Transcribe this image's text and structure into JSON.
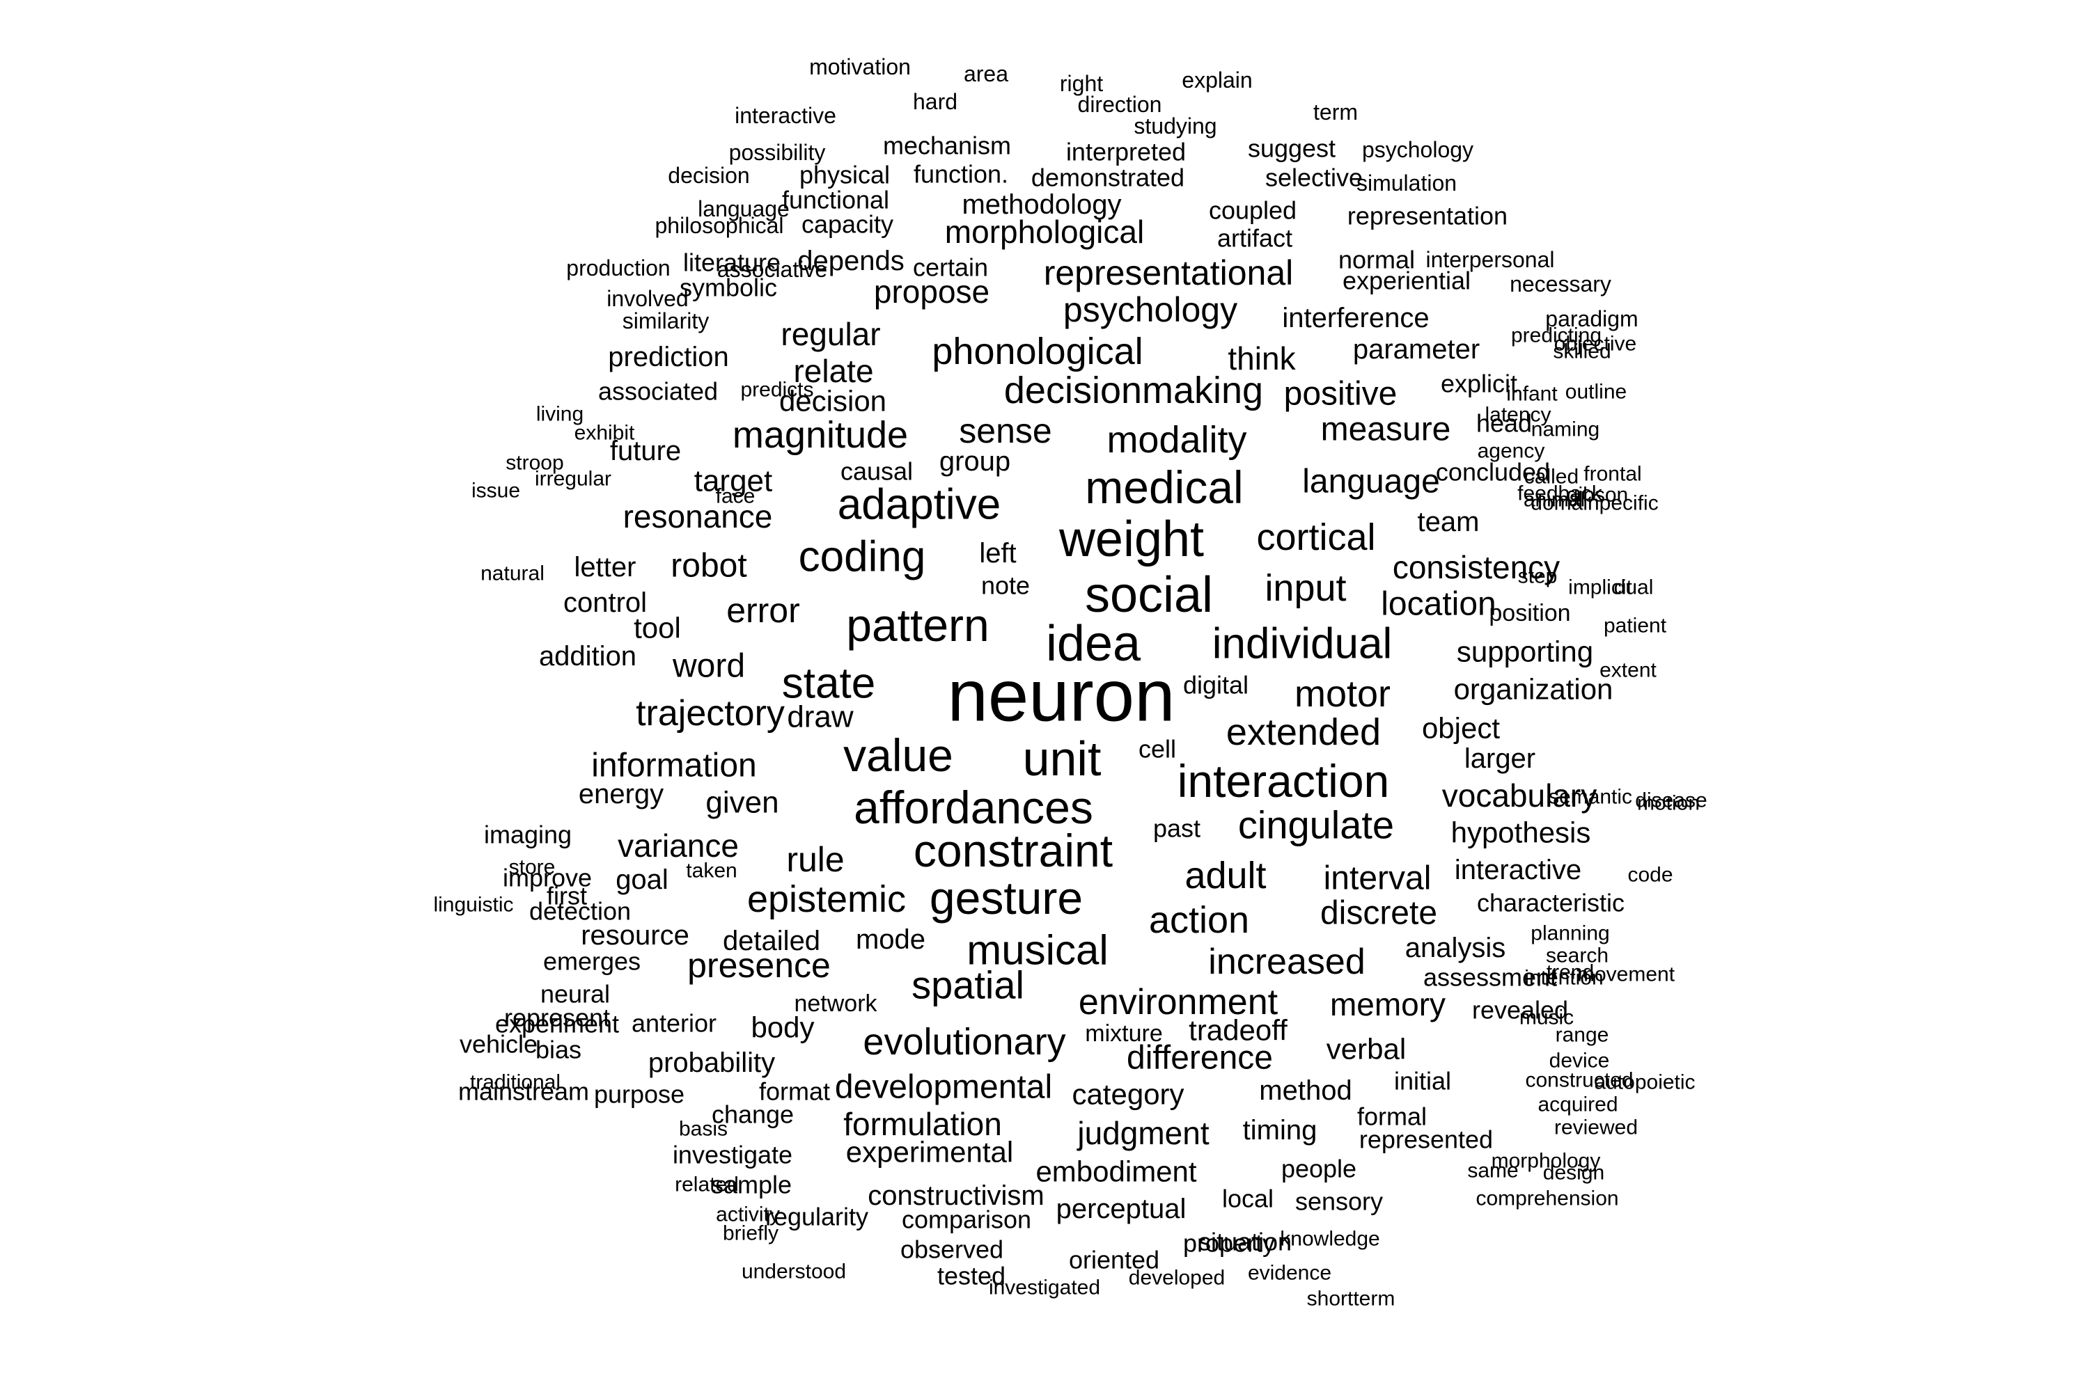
{
  "words": [
    {
      "text": "neuron",
      "weight": 100
    },
    {
      "text": "idea",
      "weight": 74
    },
    {
      "text": "social",
      "weight": 74
    },
    {
      "text": "weight",
      "weight": 72
    },
    {
      "text": "unit",
      "weight": 70
    },
    {
      "text": "medical",
      "weight": 68
    },
    {
      "text": "affordances",
      "weight": 68
    },
    {
      "text": "value",
      "weight": 68
    },
    {
      "text": "pattern",
      "weight": 67
    },
    {
      "text": "gesture",
      "weight": 66
    },
    {
      "text": "constraint",
      "weight": 66
    },
    {
      "text": "interaction",
      "weight": 65
    },
    {
      "text": "coding",
      "weight": 64
    },
    {
      "text": "adaptive",
      "weight": 63
    },
    {
      "text": "state",
      "weight": 61
    },
    {
      "text": "individual",
      "weight": 60
    },
    {
      "text": "musical",
      "weight": 58
    },
    {
      "text": "cingulate",
      "weight": 57
    },
    {
      "text": "spatial",
      "weight": 56
    },
    {
      "text": "evolutionary",
      "weight": 55
    },
    {
      "text": "epistemic",
      "weight": 54
    },
    {
      "text": "input",
      "weight": 54
    },
    {
      "text": "adult",
      "weight": 54
    },
    {
      "text": "extended",
      "weight": 54
    },
    {
      "text": "cortical",
      "weight": 54
    },
    {
      "text": "modality",
      "weight": 54
    },
    {
      "text": "phonological",
      "weight": 54
    },
    {
      "text": "decisionmaking",
      "weight": 54
    },
    {
      "text": "magnitude",
      "weight": 54
    },
    {
      "text": "trajectory",
      "weight": 53
    },
    {
      "text": "action",
      "weight": 53
    },
    {
      "text": "environment",
      "weight": 52
    },
    {
      "text": "increased",
      "weight": 52
    },
    {
      "text": "motor",
      "weight": 52
    },
    {
      "text": "developmental",
      "weight": 50
    },
    {
      "text": "presence",
      "weight": 50
    },
    {
      "text": "psychology",
      "weight": 50
    },
    {
      "text": "representational",
      "weight": 50
    },
    {
      "text": "sense",
      "weight": 50
    },
    {
      "text": "error",
      "weight": 50
    },
    {
      "text": "rule",
      "weight": 50
    },
    {
      "text": "discrete",
      "weight": 48
    },
    {
      "text": "information",
      "weight": 48
    },
    {
      "text": "difference",
      "weight": 48
    },
    {
      "text": "language",
      "weight": 48
    },
    {
      "text": "measure",
      "weight": 48
    },
    {
      "text": "location",
      "weight": 48
    },
    {
      "text": "interval",
      "weight": 48
    },
    {
      "text": "robot",
      "weight": 48
    },
    {
      "text": "word",
      "weight": 48
    },
    {
      "text": "positive",
      "weight": 48
    },
    {
      "text": "vocabulary",
      "weight": 46
    },
    {
      "text": "consistency",
      "weight": 46
    },
    {
      "text": "think",
      "weight": 46
    },
    {
      "text": "resonance",
      "weight": 46
    },
    {
      "text": "relate",
      "weight": 46
    },
    {
      "text": "propose",
      "weight": 46
    },
    {
      "text": "formulation",
      "weight": 46
    },
    {
      "text": "memory",
      "weight": 46
    },
    {
      "text": "variance",
      "weight": 46
    },
    {
      "text": "judgment",
      "weight": 46
    },
    {
      "text": "regular",
      "weight": 44
    },
    {
      "text": "morphological",
      "weight": 44
    },
    {
      "text": "experimental",
      "weight": 44
    },
    {
      "text": "target",
      "weight": 44
    },
    {
      "text": "given",
      "weight": 44
    },
    {
      "text": "draw",
      "weight": 44
    },
    {
      "text": "organization",
      "weight": 44
    },
    {
      "text": "verbal",
      "weight": 44
    },
    {
      "text": "hypothesis",
      "weight": 44
    },
    {
      "text": "tradeoff",
      "weight": 44
    },
    {
      "text": "decision",
      "weight": 42
    },
    {
      "text": "supporting",
      "weight": 42
    },
    {
      "text": "analysis",
      "weight": 42
    },
    {
      "text": "category",
      "weight": 42
    },
    {
      "text": "embodiment",
      "weight": 42
    },
    {
      "text": "body",
      "weight": 42
    },
    {
      "text": "object",
      "weight": 42
    },
    {
      "text": "tool",
      "weight": 42
    },
    {
      "text": "constructivism",
      "weight": 42
    },
    {
      "text": "method",
      "weight": 42
    },
    {
      "text": "timing",
      "weight": 42
    },
    {
      "text": "larger",
      "weight": 42
    },
    {
      "text": "methodology",
      "weight": 40
    },
    {
      "text": "left",
      "weight": 40
    },
    {
      "text": "team",
      "weight": 40
    },
    {
      "text": "energy",
      "weight": 40
    },
    {
      "text": "mode",
      "weight": 40
    },
    {
      "text": "probability",
      "weight": 40
    },
    {
      "text": "perceptual",
      "weight": 40
    },
    {
      "text": "detailed",
      "weight": 40
    },
    {
      "text": "parameter",
      "weight": 40
    },
    {
      "text": "interference",
      "weight": 40
    },
    {
      "text": "prediction",
      "weight": 40
    },
    {
      "text": "goal",
      "weight": 40
    },
    {
      "text": "resource",
      "weight": 40
    },
    {
      "text": "interactive",
      "weight": 40
    },
    {
      "text": "future",
      "weight": 40
    },
    {
      "text": "depends",
      "weight": 40
    },
    {
      "text": "letter",
      "weight": 40
    },
    {
      "text": "addition",
      "weight": 40
    },
    {
      "text": "group",
      "weight": 40
    },
    {
      "text": "control",
      "weight": 38
    },
    {
      "text": "mechanism",
      "weight": 38
    },
    {
      "text": "functional",
      "weight": 38
    },
    {
      "text": "interpreted",
      "weight": 38
    },
    {
      "text": "suggest",
      "weight": 38
    },
    {
      "text": "selective",
      "weight": 38
    },
    {
      "text": "physical",
      "weight": 38
    },
    {
      "text": "demonstrated",
      "weight": 38
    },
    {
      "text": "function.",
      "weight": 38
    },
    {
      "text": "coupled",
      "weight": 38
    },
    {
      "text": "representation",
      "weight": 38
    },
    {
      "text": "capacity",
      "weight": 38
    },
    {
      "text": "literature",
      "weight": 38
    },
    {
      "text": "symbolic",
      "weight": 38
    },
    {
      "text": "artifact",
      "weight": 38
    },
    {
      "text": "normal",
      "weight": 38
    },
    {
      "text": "experiential",
      "weight": 38
    },
    {
      "text": "explicit",
      "weight": 38
    },
    {
      "text": "head",
      "weight": 38
    },
    {
      "text": "concluded",
      "weight": 38
    },
    {
      "text": "causal",
      "weight": 38
    },
    {
      "text": "associated",
      "weight": 38
    },
    {
      "text": "imaging",
      "weight": 38
    },
    {
      "text": "improve",
      "weight": 38
    },
    {
      "text": "detection",
      "weight": 38
    },
    {
      "text": "emerges",
      "weight": 38
    },
    {
      "text": "past",
      "weight": 38
    },
    {
      "text": "cell",
      "weight": 38
    },
    {
      "text": "digital",
      "weight": 38
    },
    {
      "text": "characteristic",
      "weight": 38
    },
    {
      "text": "assessment",
      "weight": 38
    },
    {
      "text": "revealed",
      "weight": 38
    },
    {
      "text": "initial",
      "weight": 38
    },
    {
      "text": "formal",
      "weight": 38
    },
    {
      "text": "represented",
      "weight": 38
    },
    {
      "text": "people",
      "weight": 38
    },
    {
      "text": "sensory",
      "weight": 38
    },
    {
      "text": "local",
      "weight": 38
    },
    {
      "text": "property",
      "weight": 38
    },
    {
      "text": "situation",
      "weight": 38
    },
    {
      "text": "oriented",
      "weight": 38
    },
    {
      "text": "comparison",
      "weight": 38
    },
    {
      "text": "observed",
      "weight": 38
    },
    {
      "text": "tested",
      "weight": 38
    },
    {
      "text": "sample",
      "weight": 38
    },
    {
      "text": "regularity",
      "weight": 38
    },
    {
      "text": "investigate",
      "weight": 38
    },
    {
      "text": "format",
      "weight": 38
    },
    {
      "text": "change",
      "weight": 38
    },
    {
      "text": "purpose",
      "weight": 38
    },
    {
      "text": "anterior",
      "weight": 38
    },
    {
      "text": "represent",
      "weight": 38
    },
    {
      "text": "neural",
      "weight": 38
    },
    {
      "text": "first",
      "weight": 38
    },
    {
      "text": "vehicle",
      "weight": 38
    },
    {
      "text": "mainstream",
      "weight": 38
    },
    {
      "text": "bias",
      "weight": 38
    },
    {
      "text": "experiment",
      "weight": 38
    },
    {
      "text": "certain",
      "weight": 38
    },
    {
      "text": "note",
      "weight": 38
    },
    {
      "text": "position",
      "weight": 38
    },
    {
      "text": "mixture",
      "weight": 38
    },
    {
      "text": "network",
      "weight": 38
    },
    {
      "text": "motivation",
      "weight": 38
    },
    {
      "text": "area",
      "weight": 38
    },
    {
      "text": "right",
      "weight": 36
    },
    {
      "text": "explain",
      "weight": 36
    },
    {
      "text": "hard",
      "weight": 36
    },
    {
      "text": "direction",
      "weight": 35
    },
    {
      "text": "studying",
      "weight": 35
    },
    {
      "text": "interactive",
      "weight": 35
    },
    {
      "text": "term",
      "weight": 35
    },
    {
      "text": "possibility",
      "weight": 35
    },
    {
      "text": "psychology",
      "weight": 37
    },
    {
      "text": "decision",
      "weight": 37
    },
    {
      "text": "simulation",
      "weight": 37
    },
    {
      "text": "language",
      "weight": 35
    },
    {
      "text": "philosophical",
      "weight": 35
    },
    {
      "text": "associative",
      "weight": 35
    },
    {
      "text": "production",
      "weight": 35
    },
    {
      "text": "interpersonal",
      "weight": 35
    },
    {
      "text": "necessary",
      "weight": 35
    },
    {
      "text": "involved",
      "weight": 35
    },
    {
      "text": "similarity",
      "weight": 37
    },
    {
      "text": "paradigm",
      "weight": 35
    },
    {
      "text": "predicts",
      "weight": 35
    },
    {
      "text": "predicting",
      "weight": 35
    },
    {
      "text": "skilled",
      "weight": 37
    },
    {
      "text": "objective",
      "weight": 35
    },
    {
      "text": "infant",
      "weight": 35
    },
    {
      "text": "living",
      "weight": 33
    },
    {
      "text": "latency",
      "weight": 33
    },
    {
      "text": "outline",
      "weight": 33
    },
    {
      "text": "exhibit",
      "weight": 33
    },
    {
      "text": "agency",
      "weight": 35
    },
    {
      "text": "naming",
      "weight": 35
    },
    {
      "text": "stroop",
      "weight": 35
    },
    {
      "text": "irregular",
      "weight": 33
    },
    {
      "text": "issue",
      "weight": 35
    },
    {
      "text": "called",
      "weight": 33
    },
    {
      "text": "animal",
      "weight": 35
    },
    {
      "text": "frontal",
      "weight": 33
    },
    {
      "text": "feedback",
      "weight": 35
    },
    {
      "text": "domainpecific",
      "weight": 35
    },
    {
      "text": "gibson",
      "weight": 35
    },
    {
      "text": "face",
      "weight": 33
    },
    {
      "text": "implicit",
      "weight": 33
    },
    {
      "text": "natural",
      "weight": 33
    },
    {
      "text": "step",
      "weight": 33
    },
    {
      "text": "dual",
      "weight": 33
    },
    {
      "text": "patient",
      "weight": 33
    },
    {
      "text": "extent",
      "weight": 33
    },
    {
      "text": "disease",
      "weight": 35
    },
    {
      "text": "semantic",
      "weight": 35
    },
    {
      "text": "motion",
      "weight": 33
    },
    {
      "text": "store",
      "weight": 33
    },
    {
      "text": "taken",
      "weight": 35
    },
    {
      "text": "code",
      "weight": 33
    },
    {
      "text": "linguistic",
      "weight": 33
    },
    {
      "text": "planning",
      "weight": 35
    },
    {
      "text": "search",
      "weight": 35
    },
    {
      "text": "intention",
      "weight": 33
    },
    {
      "text": "trend",
      "weight": 35
    },
    {
      "text": "movement",
      "weight": 33
    },
    {
      "text": "music",
      "weight": 35
    },
    {
      "text": "range",
      "weight": 35
    },
    {
      "text": "device",
      "weight": 33
    },
    {
      "text": "traditional",
      "weight": 33
    },
    {
      "text": "constructed",
      "weight": 33
    },
    {
      "text": "autopoietic",
      "weight": 33
    },
    {
      "text": "acquired",
      "weight": 33
    },
    {
      "text": "reviewed",
      "weight": 33
    },
    {
      "text": "basis",
      "weight": 33
    },
    {
      "text": "related",
      "weight": 33
    },
    {
      "text": "morphology",
      "weight": 33
    },
    {
      "text": "same",
      "weight": 33
    },
    {
      "text": "design",
      "weight": 33
    },
    {
      "text": "comprehension",
      "weight": 33
    },
    {
      "text": "activity",
      "weight": 33
    },
    {
      "text": "briefly",
      "weight": 33
    },
    {
      "text": "knowledge",
      "weight": 33
    },
    {
      "text": "understood",
      "weight": 33
    },
    {
      "text": "investigated",
      "weight": 35
    },
    {
      "text": "developed",
      "weight": 35
    },
    {
      "text": "evidence",
      "weight": 33
    },
    {
      "text": "shortterm",
      "weight": 33
    }
  ]
}
